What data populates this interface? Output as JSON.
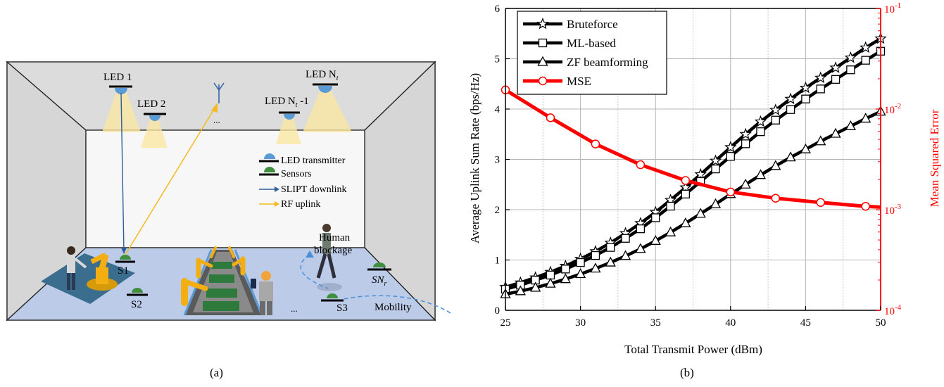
{
  "panel_a": {
    "caption": "(a)",
    "labels": {
      "led1": "LED 1",
      "led2": "LED 2",
      "led_nt1": "LED N",
      "led_nt1_sub": "t",
      "led_nt1_tail": " -1",
      "led_nt": "LED N",
      "led_nt_sub": "t",
      "ellipsis_top": "...",
      "ellipsis_floor": "...",
      "s1": "S1",
      "s2": "S2",
      "s3": "S3",
      "snr": "SN",
      "snr_sub": "r",
      "human_blockage_1": "Human",
      "human_blockage_2": "blockage",
      "mobility": "Mobility"
    },
    "legend": [
      {
        "label": "LED transmitter",
        "icon": "led-dome-icon"
      },
      {
        "label": "Sensors",
        "icon": "sensor-dome-icon"
      },
      {
        "label": "SLIPT downlink",
        "icon": "blue-arrow-icon"
      },
      {
        "label": "RF uplink",
        "icon": "yellow-arrow-icon"
      }
    ],
    "colors": {
      "led": "#5b9bd5",
      "sensor": "#3f8f3f",
      "downlink": "#2f5f9e",
      "uplink": "#f5b820",
      "floor": "#bccbe8",
      "light_cone": "#fbe7a3"
    }
  },
  "panel_b": {
    "caption": "(b)",
    "chart_data": {
      "type": "line",
      "xlabel": "Total Transmit Power (dBm)",
      "ylabel": "Average Uplink Sum Rate (bps/Hz)",
      "ylabel_right": "Mean Squared Error",
      "xlim": [
        25,
        50
      ],
      "ylim": [
        0,
        6
      ],
      "ylim_right": [
        0.0001,
        0.1
      ],
      "right_axis_scale": "log",
      "x_ticks": [
        "25",
        "30",
        "35",
        "40",
        "45",
        "50"
      ],
      "y_ticks": [
        "0",
        "1",
        "2",
        "3",
        "4",
        "5",
        "6"
      ],
      "y_right_ticks": [
        {
          "base": "10",
          "exp": "-4",
          "value": 0.0001
        },
        {
          "base": "10",
          "exp": "-3",
          "value": 0.001
        },
        {
          "base": "10",
          "exp": "-2",
          "value": 0.01
        },
        {
          "base": "10",
          "exp": "-1",
          "value": 0.1
        }
      ],
      "grid": true,
      "legend_position": "top-left",
      "series": [
        {
          "name": "Bruteforce",
          "axis": "left",
          "marker": "star",
          "color": "#000000",
          "x": [
            25,
            26,
            27,
            28,
            29,
            30,
            31,
            32,
            33,
            34,
            35,
            36,
            37,
            38,
            39,
            40,
            41,
            42,
            43,
            44,
            45,
            46,
            47,
            48,
            49,
            50
          ],
          "y": [
            0.46,
            0.55,
            0.65,
            0.76,
            0.88,
            1.02,
            1.17,
            1.34,
            1.53,
            1.73,
            1.95,
            2.19,
            2.44,
            2.7,
            2.97,
            3.24,
            3.5,
            3.75,
            3.98,
            4.2,
            4.42,
            4.62,
            4.82,
            5.02,
            5.22,
            5.4
          ]
        },
        {
          "name": "ML-based",
          "axis": "left",
          "marker": "square",
          "color": "#000000",
          "x": [
            25,
            26,
            27,
            28,
            29,
            30,
            31,
            32,
            33,
            34,
            35,
            36,
            37,
            38,
            39,
            40,
            41,
            42,
            43,
            44,
            45,
            46,
            47,
            48,
            49,
            50
          ],
          "y": [
            0.42,
            0.5,
            0.6,
            0.7,
            0.82,
            0.95,
            1.09,
            1.25,
            1.43,
            1.62,
            1.84,
            2.07,
            2.31,
            2.56,
            2.81,
            3.06,
            3.31,
            3.55,
            3.78,
            3.99,
            4.2,
            4.4,
            4.59,
            4.78,
            4.97,
            5.15
          ]
        },
        {
          "name": "ZF beamforming",
          "axis": "left",
          "marker": "triangle",
          "color": "#000000",
          "x": [
            25,
            26,
            27,
            28,
            29,
            30,
            31,
            32,
            33,
            34,
            35,
            36,
            37,
            38,
            39,
            40,
            41,
            42,
            43,
            44,
            45,
            46,
            47,
            48,
            49,
            50
          ],
          "y": [
            0.32,
            0.38,
            0.45,
            0.53,
            0.62,
            0.72,
            0.83,
            0.95,
            1.08,
            1.22,
            1.38,
            1.55,
            1.73,
            1.92,
            2.11,
            2.31,
            2.5,
            2.69,
            2.87,
            3.04,
            3.2,
            3.36,
            3.51,
            3.66,
            3.81,
            3.95
          ]
        },
        {
          "name": "MSE",
          "axis": "right",
          "marker": "circle",
          "color": "#ff0000",
          "x": [
            25,
            28,
            31,
            34,
            37,
            40,
            43,
            46,
            49,
            50
          ],
          "y": [
            0.0155,
            0.0082,
            0.0045,
            0.0028,
            0.00195,
            0.0015,
            0.0013,
            0.00118,
            0.00108,
            0.00106
          ],
          "marker_x": [
            25,
            28,
            31,
            34,
            37,
            40,
            43,
            46,
            49
          ]
        }
      ]
    }
  }
}
